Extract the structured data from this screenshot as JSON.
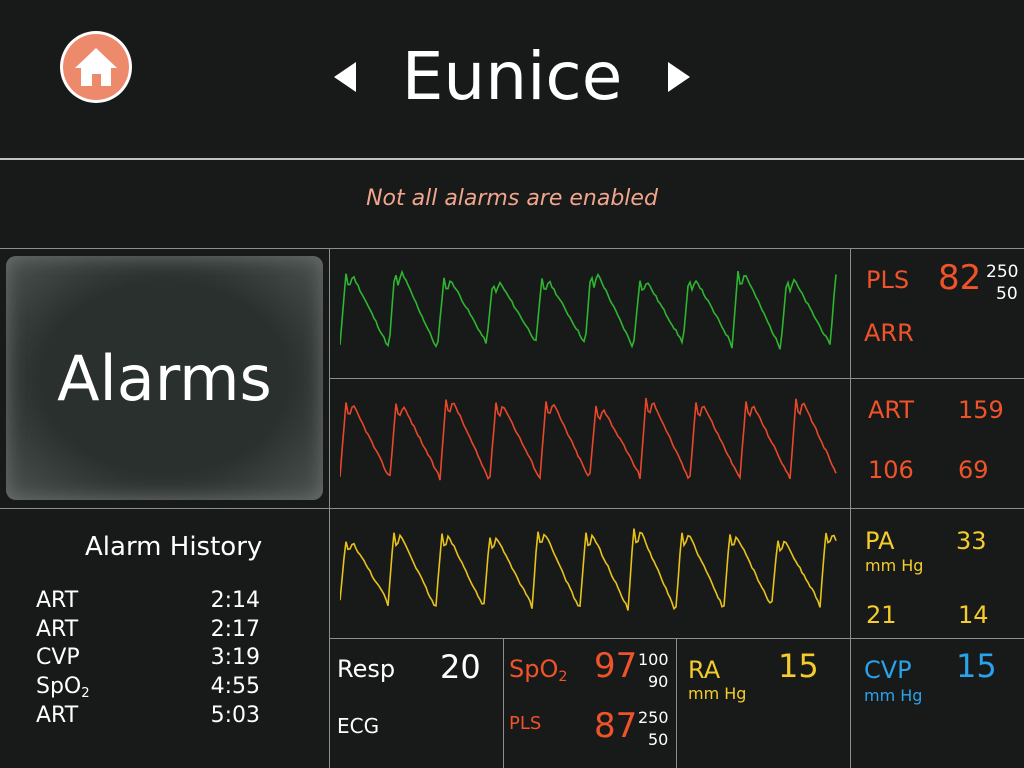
{
  "header": {
    "patient_name": "Eunice",
    "alarm_notice": "Not all alarms are enabled"
  },
  "alarms_button": {
    "label": "Alarms"
  },
  "alarm_history": {
    "title": "Alarm History",
    "entries": [
      {
        "name": "ART",
        "time": "2:14"
      },
      {
        "name": "ART",
        "time": "2:17"
      },
      {
        "name": "CVP",
        "time": "3:19"
      },
      {
        "name": "SpO",
        "sub": "2",
        "time": "4:55"
      },
      {
        "name": "ART",
        "time": "5:03"
      }
    ]
  },
  "vitals": {
    "pls": {
      "label": "PLS",
      "value": "82",
      "high": "250",
      "low": "50",
      "arr": "ARR"
    },
    "art": {
      "label": "ART",
      "top": "159",
      "left": "106",
      "right": "69"
    },
    "pa": {
      "label": "PA",
      "unit": "mm Hg",
      "top": "33",
      "left": "21",
      "right": "14"
    },
    "resp": {
      "label": "Resp",
      "value": "20",
      "ecg": "ECG"
    },
    "spo2": {
      "label": "SpO",
      "sub": "2",
      "value": "97",
      "high": "100",
      "low": "90",
      "pls_label": "PLS",
      "pls_value": "87",
      "pls_high": "250",
      "pls_low": "50"
    },
    "ra": {
      "label": "RA",
      "unit": "mm Hg",
      "value": "15"
    },
    "cvp": {
      "label": "CVP",
      "unit": "mm Hg",
      "value": "15"
    }
  },
  "colors": {
    "green_wave": "#2fb52f",
    "red_wave": "#e8472a",
    "yellow_wave": "#e8c21a",
    "home_button": "#ee8a6c",
    "notice_text": "#f0a58c"
  },
  "icons": {
    "home": "home-icon",
    "prev": "chevron-left-icon",
    "next": "chevron-right-icon"
  }
}
